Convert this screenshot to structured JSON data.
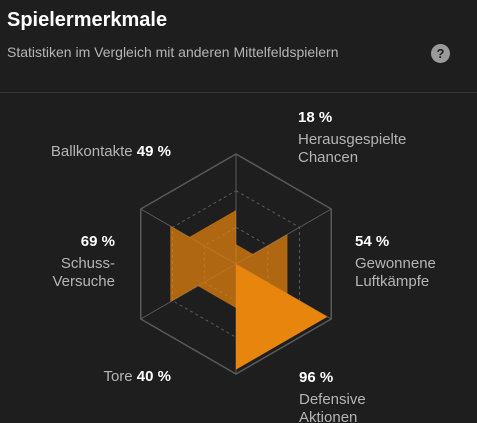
{
  "header": {
    "title": "Spielermerkmale",
    "subtitle": "Statistiken im Vergleich mit anderen Mittelfeldspielern",
    "help_icon": "?"
  },
  "chart_data": {
    "type": "radar",
    "categories": [
      "Ballkontakte",
      "Herausgespielte Chancen",
      "Gewonnene Luftkämpfe",
      "Defensive Aktionen",
      "Tore",
      "Schuss-Versuche"
    ],
    "values": [
      49,
      18,
      54,
      96,
      40,
      69
    ],
    "value_labels": [
      "49 %",
      "18 %",
      "54 %",
      "96 %",
      "40 %",
      "69 %"
    ],
    "color": "#e8850c",
    "rlim": [
      0,
      100
    ]
  }
}
